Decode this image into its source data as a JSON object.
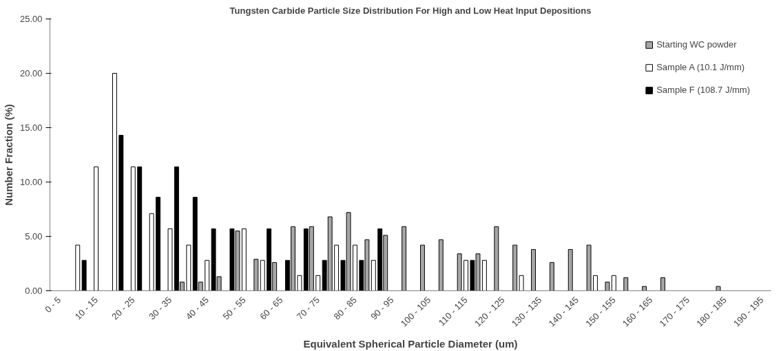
{
  "chart_data": {
    "type": "bar",
    "title": "Tungsten Carbide Particle Size Distribution For High and Low Heat Input Depositions",
    "xlabel": "Equivalent Spherical Particle Diameter (um)",
    "ylabel": "Number Fraction (%)",
    "categories": [
      "0 - 5",
      null,
      "10 - 15",
      null,
      "20 - 25",
      null,
      "30 - 35",
      null,
      "40 - 45",
      null,
      "50 - 55",
      null,
      "60 - 65",
      null,
      "70 - 75",
      null,
      "80 - 85",
      null,
      "90 - 95",
      null,
      "100 - 105",
      null,
      "110 - 115",
      null,
      "120 - 125",
      null,
      "130 - 135",
      null,
      "140 - 145",
      null,
      "150 - 155",
      null,
      "160 - 165",
      null,
      "170 - 175",
      null,
      "180 - 185",
      null,
      "190 - 195"
    ],
    "series": [
      {
        "name": "Starting WC powder",
        "color": "#a6a6a6",
        "values": [
          null,
          null,
          null,
          null,
          null,
          null,
          null,
          0.8,
          0.8,
          1.3,
          5.5,
          2.9,
          2.6,
          5.9,
          5.9,
          6.8,
          7.2,
          4.7,
          5.1,
          5.9,
          4.2,
          4.7,
          3.4,
          3.4,
          5.9,
          4.2,
          3.8,
          2.6,
          3.8,
          4.2,
          0.8,
          1.2,
          0.4,
          1.2,
          null,
          null,
          0.4,
          null,
          null
        ]
      },
      {
        "name": "Sample A (10.1 J/mm)",
        "color": "#ffffff",
        "values": [
          null,
          4.2,
          11.4,
          20.0,
          11.4,
          7.1,
          5.7,
          4.2,
          2.8,
          null,
          5.7,
          2.8,
          null,
          1.4,
          1.4,
          4.2,
          4.2,
          2.8,
          null,
          null,
          null,
          null,
          2.8,
          2.8,
          null,
          1.4,
          null,
          null,
          null,
          1.4,
          1.4,
          null,
          null,
          null,
          null,
          null,
          null,
          null,
          null
        ]
      },
      {
        "name": "Sample F (108.7 J/mm)",
        "color": "#000000",
        "values": [
          null,
          2.8,
          null,
          14.3,
          11.4,
          8.6,
          11.4,
          8.6,
          5.7,
          5.7,
          null,
          5.7,
          2.8,
          5.7,
          2.8,
          2.8,
          2.8,
          5.7,
          null,
          null,
          null,
          null,
          2.8,
          null,
          null,
          null,
          null,
          null,
          null,
          null,
          null,
          null,
          null,
          null,
          null,
          null,
          null,
          null,
          null
        ]
      }
    ],
    "ylim": [
      0,
      25
    ],
    "yticks": [
      {
        "value": 0,
        "label": "0.00"
      },
      {
        "value": 5,
        "label": "5.00"
      },
      {
        "value": 10,
        "label": "10.00"
      },
      {
        "value": 15,
        "label": "15.00"
      },
      {
        "value": 20,
        "label": "20.00"
      },
      {
        "value": 25,
        "label": "25.00"
      }
    ],
    "grid": false,
    "legend": "top right"
  }
}
